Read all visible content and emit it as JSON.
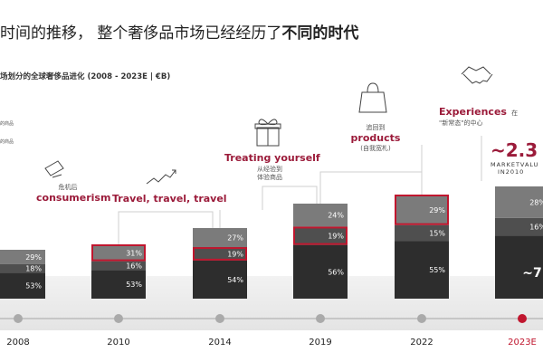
{
  "title": {
    "prefix": "时间的推移， 整个奢侈品市场已经经历了",
    "emphasis": "不同的时代"
  },
  "subtitle": "场划分的全球奢侈品进化 (2008 - 2023E | €B)",
  "notes": [
    "的商品",
    "的商品"
  ],
  "eras": [
    {
      "main": "consumerism",
      "sub": "危机后",
      "icon": "hand-writing-icon"
    },
    {
      "main": "Travel, travel, travel",
      "sub": "",
      "icon": "trend-arrow-icon"
    },
    {
      "main": "Treating yourself",
      "sub": "从经验到\n体验商品",
      "icon": "gift-box-icon"
    },
    {
      "main": "products",
      "sub": "(自我宽札)",
      "pre": "追回到",
      "icon": "shopping-bag-icon"
    },
    {
      "main": "Experiences",
      "sub": "\"新常态\"的中心",
      "suffix": "在",
      "icon": "handshake-icon"
    }
  ],
  "market_value": {
    "value": "~2.3",
    "label1": "MARKETVALU",
    "label2": "IN2010"
  },
  "chart_data": {
    "type": "bar",
    "stacked": true,
    "categories": [
      "2008",
      "2010",
      "2014",
      "2019",
      "2022",
      "2023E"
    ],
    "series": [
      {
        "name": "",
        "values": [
          53,
          53,
          54,
          56,
          55,
          null
        ],
        "color": "#2d2d2d"
      },
      {
        "name": "",
        "values": [
          18,
          16,
          19,
          19,
          15,
          16
        ],
        "color": "#4f4f4f"
      },
      {
        "name": "",
        "values": [
          29,
          31,
          27,
          24,
          29,
          28
        ],
        "color": "#7b7b7b"
      }
    ],
    "labels": [
      [
        "53%",
        "18%",
        "29%"
      ],
      [
        "53%",
        "16%",
        "31%"
      ],
      [
        "54%",
        "19%",
        "27%"
      ],
      [
        "56%",
        "19%",
        "24%"
      ],
      [
        "55%",
        "15%",
        "29%"
      ],
      [
        "",
        "16%",
        "28%"
      ]
    ],
    "highlight_segment": [
      null,
      2,
      1,
      1,
      2,
      null
    ],
    "highlight_color": "#c0162e",
    "year_highlight": "2023E",
    "gradient_partial_last": "~7"
  }
}
